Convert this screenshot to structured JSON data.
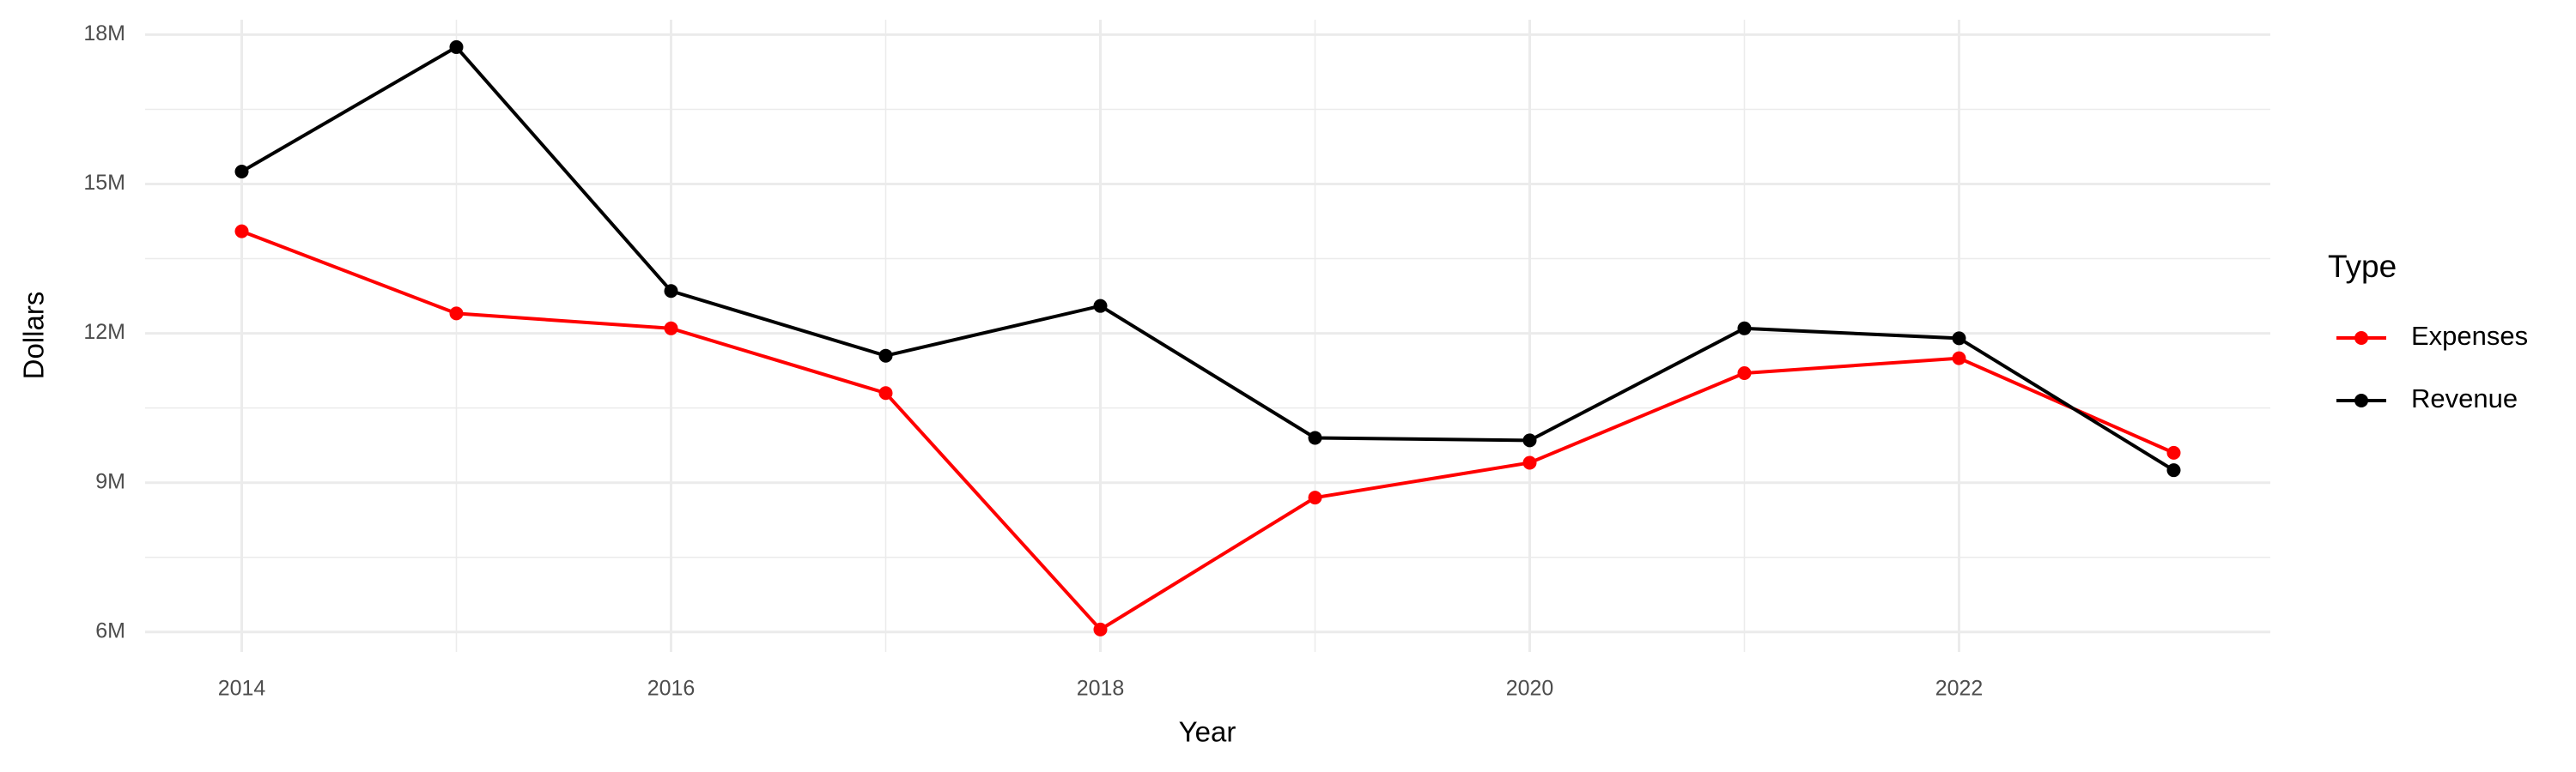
{
  "chart_data": {
    "type": "line",
    "x": [
      2014,
      2015,
      2016,
      2017,
      2018,
      2019,
      2020,
      2021,
      2022,
      2023
    ],
    "series": [
      {
        "name": "Expenses",
        "color": "#ff0000",
        "values": [
          14050000,
          12400000,
          12100000,
          10800000,
          6050000,
          8700000,
          9400000,
          11200000,
          11500000,
          9600000
        ]
      },
      {
        "name": "Revenue",
        "color": "#000000",
        "values": [
          15250000,
          17750000,
          12850000,
          11550000,
          12550000,
          9900000,
          9850000,
          12100000,
          11900000,
          9250000
        ]
      }
    ],
    "x_label": "Year",
    "y_label": "Dollars",
    "legend_title": "Type",
    "legend": "right",
    "xlim": [
      2013.55,
      2023.45
    ],
    "xticks": [
      2014,
      2016,
      2018,
      2020,
      2022
    ],
    "ylim": [
      5600000,
      18300000
    ],
    "yticks": [
      {
        "value": 6000000,
        "label": "6M"
      },
      {
        "value": 9000000,
        "label": "9M"
      },
      {
        "value": 12000000,
        "label": "12M"
      },
      {
        "value": 15000000,
        "label": "15M"
      },
      {
        "value": 18000000,
        "label": "18M"
      }
    ],
    "grid": true
  }
}
